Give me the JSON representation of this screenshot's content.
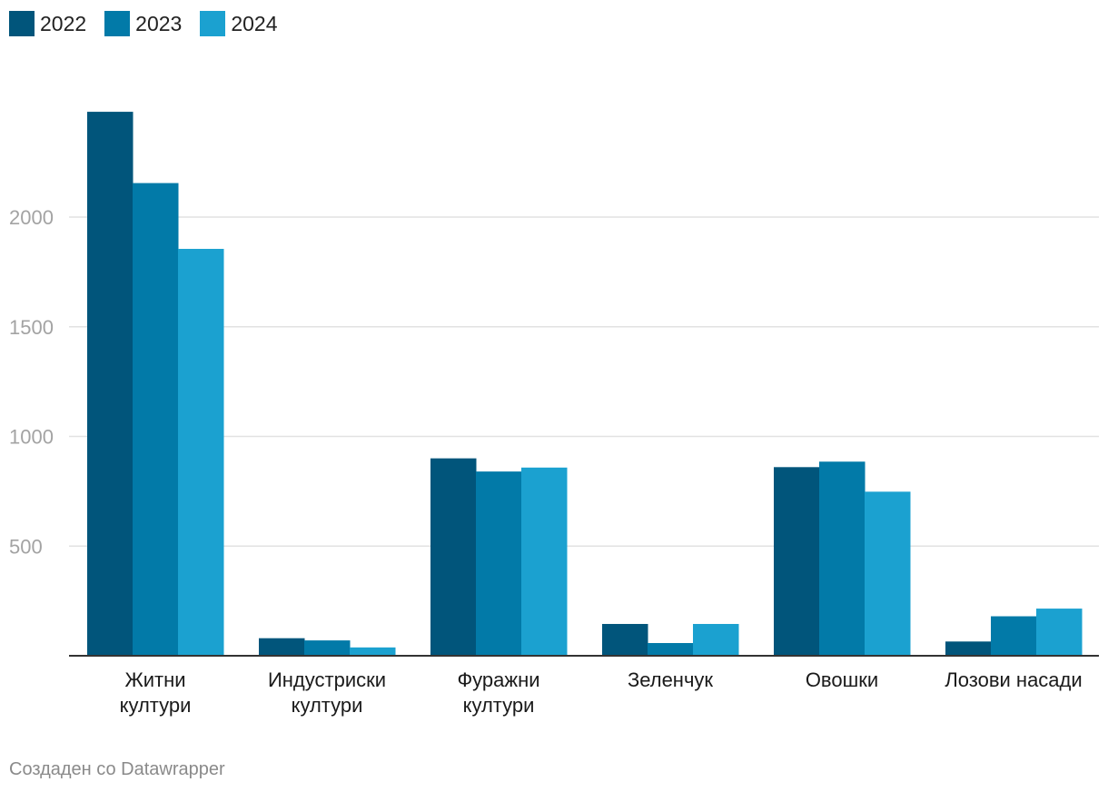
{
  "colors": [
    "#01557b",
    "#027aa8",
    "#1ba1d0"
  ],
  "chart_data": {
    "type": "bar",
    "categories": [
      [
        "Житни",
        "култури"
      ],
      [
        "Индустриски",
        "култури"
      ],
      [
        "Фуражни",
        "култури"
      ],
      [
        "Зеленчук"
      ],
      [
        "Овошки"
      ],
      [
        "Лозови насади"
      ]
    ],
    "series": [
      {
        "name": "2022",
        "values": [
          2480,
          80,
          900,
          145,
          860,
          65
        ]
      },
      {
        "name": "2023",
        "values": [
          2155,
          70,
          840,
          58,
          885,
          180
        ]
      },
      {
        "name": "2024",
        "values": [
          1855,
          38,
          858,
          145,
          748,
          215
        ]
      }
    ],
    "yticks": [
      500,
      1000,
      1500,
      2000
    ],
    "ylim": [
      0,
      2600
    ],
    "grid": true,
    "legend": "top-left"
  },
  "footer": "Создаден со Datawrapper"
}
